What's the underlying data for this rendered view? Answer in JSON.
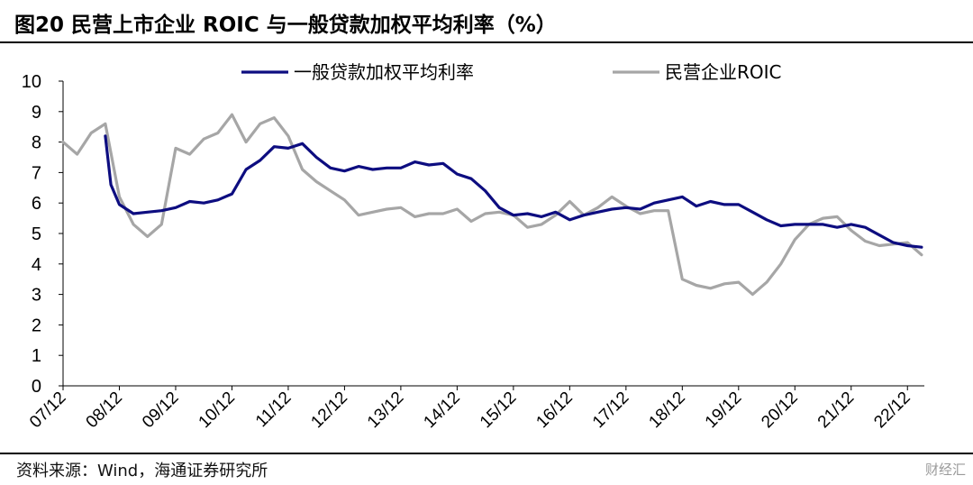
{
  "title": "图20 民营上市企业 ROIC 与一般贷款加权平均利率（%）",
  "source": "资料来源：Wind，海通证券研究所",
  "watermark": "财经汇",
  "chart_data": {
    "type": "line",
    "title": "图20 民营上市企业 ROIC 与一般贷款加权平均利率（%）",
    "xlabel": "",
    "ylabel": "",
    "ylim": [
      0,
      10
    ],
    "yticks": [
      "0",
      "1",
      "2",
      "3",
      "4",
      "5",
      "6",
      "7",
      "8",
      "9",
      "10"
    ],
    "xticks": [
      "07/12",
      "08/12",
      "09/12",
      "10/12",
      "11/12",
      "12/12",
      "13/12",
      "14/12",
      "15/12",
      "16/12",
      "17/12",
      "18/12",
      "19/12",
      "20/12",
      "21/12",
      "22/12"
    ],
    "xlim": [
      0,
      15.3
    ],
    "grid": false,
    "legend_position": "top",
    "series": [
      {
        "name": "一般贷款加权平均利率",
        "color": "#0d0d80",
        "x": [
          0.75,
          0.85,
          1.0,
          1.25,
          1.5,
          1.75,
          2.0,
          2.25,
          2.5,
          2.75,
          3.0,
          3.25,
          3.5,
          3.75,
          4.0,
          4.25,
          4.5,
          4.75,
          5.0,
          5.25,
          5.5,
          5.75,
          6.0,
          6.25,
          6.5,
          6.75,
          7.0,
          7.25,
          7.5,
          7.75,
          8.0,
          8.25,
          8.5,
          8.75,
          9.0,
          9.25,
          9.5,
          9.75,
          10.0,
          10.25,
          10.5,
          10.75,
          11.0,
          11.25,
          11.5,
          11.75,
          12.0,
          12.25,
          12.5,
          12.75,
          13.0,
          13.25,
          13.5,
          13.75,
          14.0,
          14.25,
          14.5,
          14.75,
          15.0,
          15.25
        ],
        "y": [
          8.2,
          6.6,
          5.95,
          5.65,
          5.7,
          5.75,
          5.85,
          6.05,
          6.0,
          6.1,
          6.3,
          7.1,
          7.4,
          7.85,
          7.8,
          7.95,
          7.5,
          7.15,
          7.05,
          7.2,
          7.1,
          7.15,
          7.15,
          7.35,
          7.25,
          7.3,
          6.95,
          6.8,
          6.4,
          5.85,
          5.6,
          5.65,
          5.55,
          5.7,
          5.45,
          5.6,
          5.7,
          5.8,
          5.85,
          5.8,
          6.0,
          6.1,
          6.2,
          5.9,
          6.05,
          5.95,
          5.95,
          5.7,
          5.45,
          5.25,
          5.3,
          5.3,
          5.3,
          5.2,
          5.3,
          5.2,
          4.95,
          4.7,
          4.6,
          4.55
        ]
      },
      {
        "name": "民营企业ROIC",
        "color": "#a6a6a6",
        "x": [
          0.0,
          0.25,
          0.5,
          0.75,
          1.0,
          1.25,
          1.5,
          1.75,
          2.0,
          2.25,
          2.5,
          2.75,
          3.0,
          3.25,
          3.5,
          3.75,
          4.0,
          4.25,
          4.5,
          4.75,
          5.0,
          5.25,
          5.5,
          5.75,
          6.0,
          6.25,
          6.5,
          6.75,
          7.0,
          7.25,
          7.5,
          7.75,
          8.0,
          8.25,
          8.5,
          8.75,
          9.0,
          9.25,
          9.5,
          9.75,
          10.0,
          10.25,
          10.5,
          10.75,
          11.0,
          11.25,
          11.5,
          11.75,
          12.0,
          12.25,
          12.5,
          12.75,
          13.0,
          13.25,
          13.5,
          13.75,
          14.0,
          14.25,
          14.5,
          14.75,
          15.0,
          15.25
        ],
        "y": [
          8.0,
          7.6,
          8.3,
          8.6,
          6.2,
          5.3,
          4.9,
          5.3,
          7.8,
          7.6,
          8.1,
          8.3,
          8.9,
          8.0,
          8.6,
          8.8,
          8.2,
          7.1,
          6.7,
          6.4,
          6.1,
          5.6,
          5.7,
          5.8,
          5.85,
          5.55,
          5.65,
          5.65,
          5.8,
          5.4,
          5.65,
          5.7,
          5.6,
          5.2,
          5.3,
          5.6,
          6.05,
          5.6,
          5.85,
          6.2,
          5.9,
          5.65,
          5.75,
          5.75,
          3.5,
          3.3,
          3.2,
          3.35,
          3.4,
          3.0,
          3.4,
          4.0,
          4.8,
          5.3,
          5.5,
          5.55,
          5.1,
          4.75,
          4.6,
          4.65,
          4.7,
          4.3
        ]
      }
    ]
  }
}
